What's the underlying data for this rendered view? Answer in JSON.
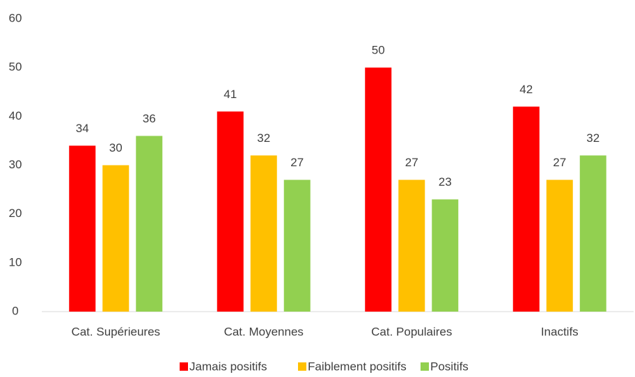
{
  "chart_data": {
    "type": "bar",
    "categories": [
      "Cat. Supérieures",
      "Cat. Moyennes",
      "Cat. Populaires",
      "Inactifs"
    ],
    "series": [
      {
        "name": "Jamais positifs",
        "color": "#ff0000",
        "values": [
          34,
          41,
          50,
          42
        ]
      },
      {
        "name": "Faiblement positifs",
        "color": "#ffc000",
        "values": [
          30,
          32,
          27,
          27
        ]
      },
      {
        "name": "Positifs",
        "color": "#92d050",
        "values": [
          36,
          27,
          23,
          32
        ]
      }
    ],
    "ylim": [
      0,
      60
    ],
    "yticks": [
      0,
      10,
      20,
      30,
      40,
      50,
      60
    ],
    "grid": false,
    "legend": "bottom"
  }
}
